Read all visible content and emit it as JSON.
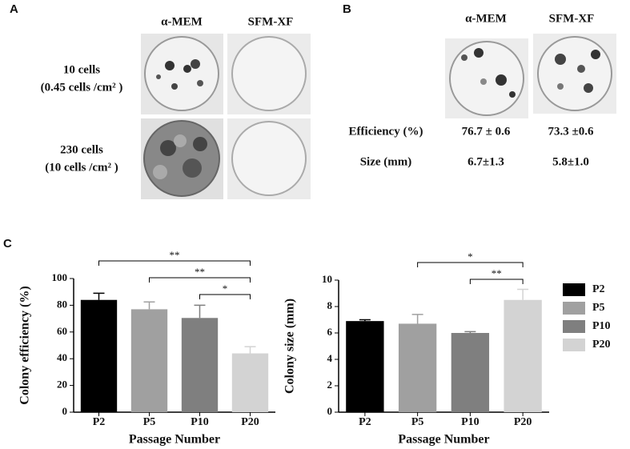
{
  "panel_labels": [
    "A",
    "B",
    "C"
  ],
  "panel_a": {
    "columns": [
      "α-MEM",
      "SFM-XF"
    ],
    "rows": [
      [
        "10 cells",
        "(0.45 cells /cm² )"
      ],
      [
        "230 cells",
        "(10 cells /cm² )"
      ]
    ]
  },
  "panel_b": {
    "columns": [
      "α-MEM",
      "SFM-XF"
    ],
    "rows": [
      {
        "label": "Efficiency  (%)",
        "values": [
          "76.7 ± 0.6",
          "73.3 ±0.6"
        ]
      },
      {
        "label": "Size (mm)",
        "values": [
          "6.7±1.3",
          "5.8±1.0"
        ]
      }
    ]
  },
  "chart_data": [
    {
      "type": "bar",
      "categories": [
        "P2",
        "P5",
        "P10",
        "P20"
      ],
      "values": [
        84,
        77,
        70.5,
        44
      ],
      "errors": [
        5,
        5.5,
        9.5,
        5
      ],
      "colors": [
        "#000000",
        "#a0a0a0",
        "#7f7f7f",
        "#d3d3d3"
      ],
      "ylabel": "Colony efficiency (%)",
      "xlabel": "Passage Number",
      "ylim": [
        0,
        100
      ],
      "yticks": [
        0,
        20,
        40,
        60,
        80,
        100
      ],
      "brackets": [
        {
          "between": [
            "P2",
            "P20"
          ],
          "label": "**"
        },
        {
          "between": [
            "P5",
            "P20"
          ],
          "label": "**"
        },
        {
          "between": [
            "P10",
            "P20"
          ],
          "label": "*"
        }
      ]
    },
    {
      "type": "bar",
      "categories": [
        "P2",
        "P5",
        "P10",
        "P20"
      ],
      "values": [
        6.9,
        6.7,
        6.0,
        8.5
      ],
      "errors": [
        0.1,
        0.7,
        0.1,
        0.8
      ],
      "colors": [
        "#000000",
        "#a0a0a0",
        "#7f7f7f",
        "#d3d3d3"
      ],
      "ylabel": "Colony size (mm)",
      "xlabel": "Passage Number",
      "ylim": [
        0,
        10
      ],
      "yticks": [
        0,
        2,
        4,
        6,
        8,
        10
      ],
      "brackets": [
        {
          "between": [
            "P5",
            "P20"
          ],
          "label": "*"
        },
        {
          "between": [
            "P10",
            "P20"
          ],
          "label": "**"
        }
      ],
      "legend": true
    }
  ]
}
